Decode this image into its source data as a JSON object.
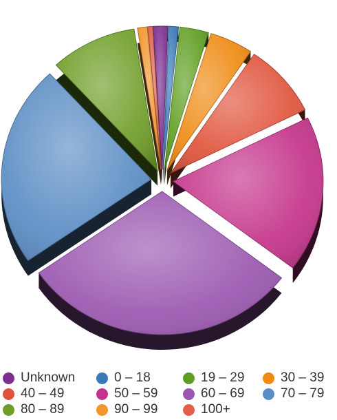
{
  "chart_data": {
    "type": "pie",
    "style": "3d-exploded",
    "title": "",
    "categories": [
      "Unknown",
      "0 – 18",
      "19 – 29",
      "30 – 39",
      "40 – 49",
      "50 – 59",
      "60 – 69",
      "70 – 79",
      "80 – 89",
      "90 – 99",
      "100+"
    ],
    "values": [
      1.5,
      1.0,
      3.0,
      4.5,
      8.0,
      17.0,
      29.0,
      22.0,
      9.0,
      1.0,
      0.5
    ],
    "colors": [
      "#7b2f8f",
      "#3a78b8",
      "#5f9e21",
      "#ef8a12",
      "#e0533b",
      "#c4338a",
      "#9a57b0",
      "#5b8dc4",
      "#6f9e28",
      "#f3962d",
      "#e2604a"
    ],
    "legend_position": "bottom"
  }
}
